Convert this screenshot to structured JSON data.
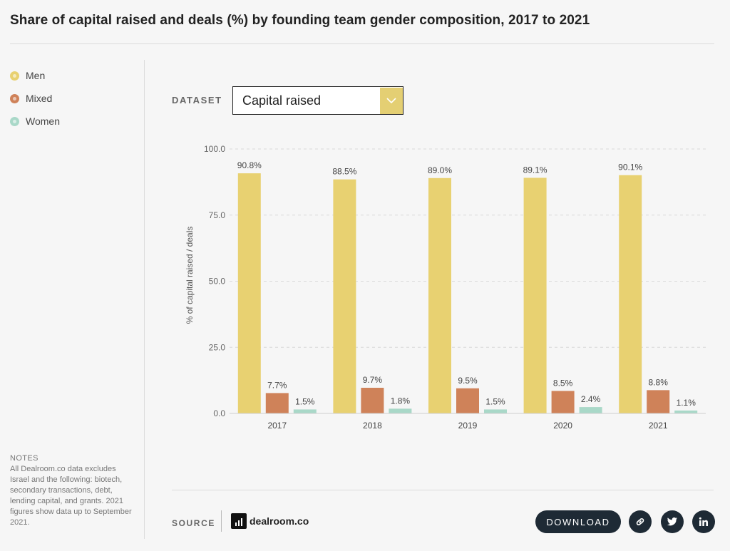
{
  "title": "Share of capital raised and deals (%) by founding team gender composition, 2017 to 2021",
  "legend": [
    {
      "label": "Men",
      "color": "#e8d171"
    },
    {
      "label": "Mixed",
      "color": "#cf8259"
    },
    {
      "label": "Women",
      "color": "#a9d8c8"
    }
  ],
  "notes": {
    "title": "NOTES",
    "text": "All Dealroom.co data excludes Israel and the following: biotech, secondary transactions, debt, lending capital, and grants. 2021 figures show data up to September 2021."
  },
  "dataset": {
    "label": "DATASET",
    "selected": "Capital raised",
    "arrow_icon": "chevron-down-icon"
  },
  "footer": {
    "source_label": "SOURCE",
    "brand": "dealroom.co",
    "download_label": "DOWNLOAD",
    "share_icons": [
      "link-icon",
      "twitter-icon",
      "linkedin-icon"
    ]
  },
  "chart_data": {
    "type": "bar",
    "categories": [
      "2017",
      "2018",
      "2019",
      "2020",
      "2021"
    ],
    "series": [
      {
        "name": "Men",
        "color": "#e8d171",
        "values": [
          90.8,
          88.5,
          89.0,
          89.1,
          90.1
        ],
        "labels": [
          "90.8%",
          "88.5%",
          "89.0%",
          "89.1%",
          "90.1%"
        ]
      },
      {
        "name": "Mixed",
        "color": "#cf8259",
        "values": [
          7.7,
          9.7,
          9.5,
          8.5,
          8.8
        ],
        "labels": [
          "7.7%",
          "9.7%",
          "9.5%",
          "8.5%",
          "8.8%"
        ]
      },
      {
        "name": "Women",
        "color": "#a9d8c8",
        "values": [
          1.5,
          1.8,
          1.5,
          2.4,
          1.1
        ],
        "labels": [
          "1.5%",
          "1.8%",
          "1.5%",
          "2.4%",
          "1.1%"
        ]
      }
    ],
    "ylabel": "% of capital raised / deals",
    "xlabel": "",
    "ylim": [
      0,
      100
    ],
    "yticks": [
      "0.0",
      "25.0",
      "50.0",
      "75.0",
      "100.0"
    ],
    "ytick_values": [
      0,
      25,
      50,
      75,
      100
    ],
    "grid": true,
    "legend_position": "left"
  }
}
